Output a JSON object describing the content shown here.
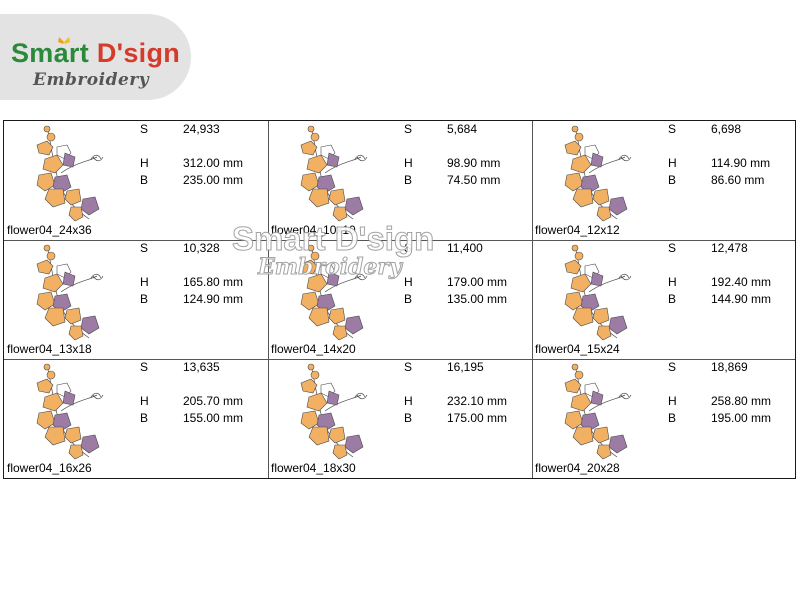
{
  "logo": {
    "brand_smart": "Smart",
    "brand_design": "D'sign",
    "tagline": "Embroidery"
  },
  "watermark": {
    "brand": "Smart D'sign",
    "tagline": "Embroidery"
  },
  "labels": {
    "stitches": "S",
    "height": "H",
    "width": "B"
  },
  "designs": [
    {
      "name": "flower04_24x36",
      "stitches": "24,933",
      "height": "312.00 mm",
      "width": "235.00 mm"
    },
    {
      "name": "flower04_10x10",
      "stitches": "5,684",
      "height": "98.90 mm",
      "width": "74.50 mm"
    },
    {
      "name": "flower04_12x12",
      "stitches": "6,698",
      "height": "114.90 mm",
      "width": "86.60 mm"
    },
    {
      "name": "flower04_13x18",
      "stitches": "10,328",
      "height": "165.80 mm",
      "width": "124.90 mm"
    },
    {
      "name": "flower04_14x20",
      "stitches": "11,400",
      "height": "179.00 mm",
      "width": "135.00 mm"
    },
    {
      "name": "flower04_15x24",
      "stitches": "12,478",
      "height": "192.40 mm",
      "width": "144.90 mm"
    },
    {
      "name": "flower04_16x26",
      "stitches": "13,635",
      "height": "205.70 mm",
      "width": "155.00 mm"
    },
    {
      "name": "flower04_18x30",
      "stitches": "16,195",
      "height": "232.10 mm",
      "width": "175.00 mm"
    },
    {
      "name": "flower04_20x28",
      "stitches": "18,869",
      "height": "258.80 mm",
      "width": "195.00 mm"
    }
  ],
  "colors": {
    "petal_orange": "#f2b062",
    "petal_purple": "#9c7ba4",
    "outline": "#4a4a4a",
    "border": "#1a1a1a"
  }
}
